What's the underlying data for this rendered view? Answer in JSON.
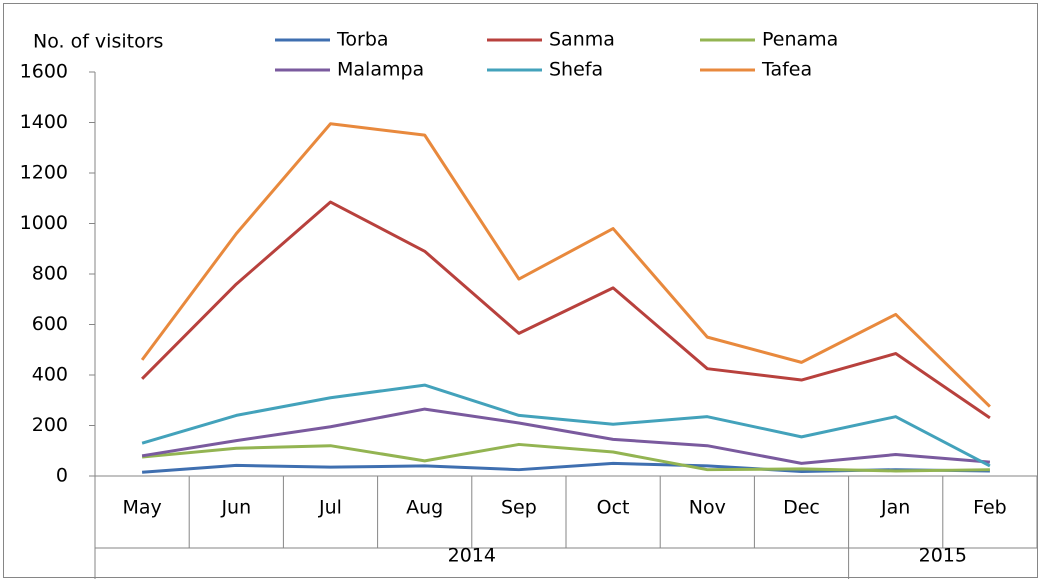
{
  "chart_data": {
    "type": "line",
    "y_axis_title": "No. of visitors",
    "categories": [
      "May",
      "Jun",
      "Jul",
      "Aug",
      "Sep",
      "Oct",
      "Nov",
      "Dec",
      "Jan",
      "Feb"
    ],
    "category_groups": [
      "2014",
      null,
      null,
      null,
      null,
      null,
      null,
      null,
      "2015",
      null
    ],
    "ylim": [
      0,
      1600
    ],
    "yticks": [
      0,
      200,
      400,
      600,
      800,
      1000,
      1200,
      1400,
      1600
    ],
    "grid": false,
    "series": [
      {
        "name": "Torba",
        "color": "#3f6fb0",
        "values": [
          15,
          42,
          35,
          40,
          25,
          50,
          40,
          18,
          25,
          20
        ]
      },
      {
        "name": "Sanma",
        "color": "#b8413d",
        "values": [
          385,
          760,
          1085,
          890,
          565,
          745,
          425,
          380,
          485,
          230
        ]
      },
      {
        "name": "Penama",
        "color": "#93b452",
        "values": [
          75,
          110,
          120,
          60,
          125,
          95,
          25,
          28,
          20,
          25
        ]
      },
      {
        "name": "Malampa",
        "color": "#7a5a9e",
        "values": [
          80,
          140,
          195,
          265,
          210,
          145,
          120,
          50,
          85,
          55
        ]
      },
      {
        "name": "Shefa",
        "color": "#43a2bb",
        "values": [
          130,
          240,
          310,
          360,
          240,
          205,
          235,
          155,
          235,
          40
        ]
      },
      {
        "name": "Tafea",
        "color": "#e8893d",
        "values": [
          460,
          960,
          1395,
          1350,
          780,
          980,
          550,
          450,
          640,
          275
        ]
      }
    ]
  }
}
